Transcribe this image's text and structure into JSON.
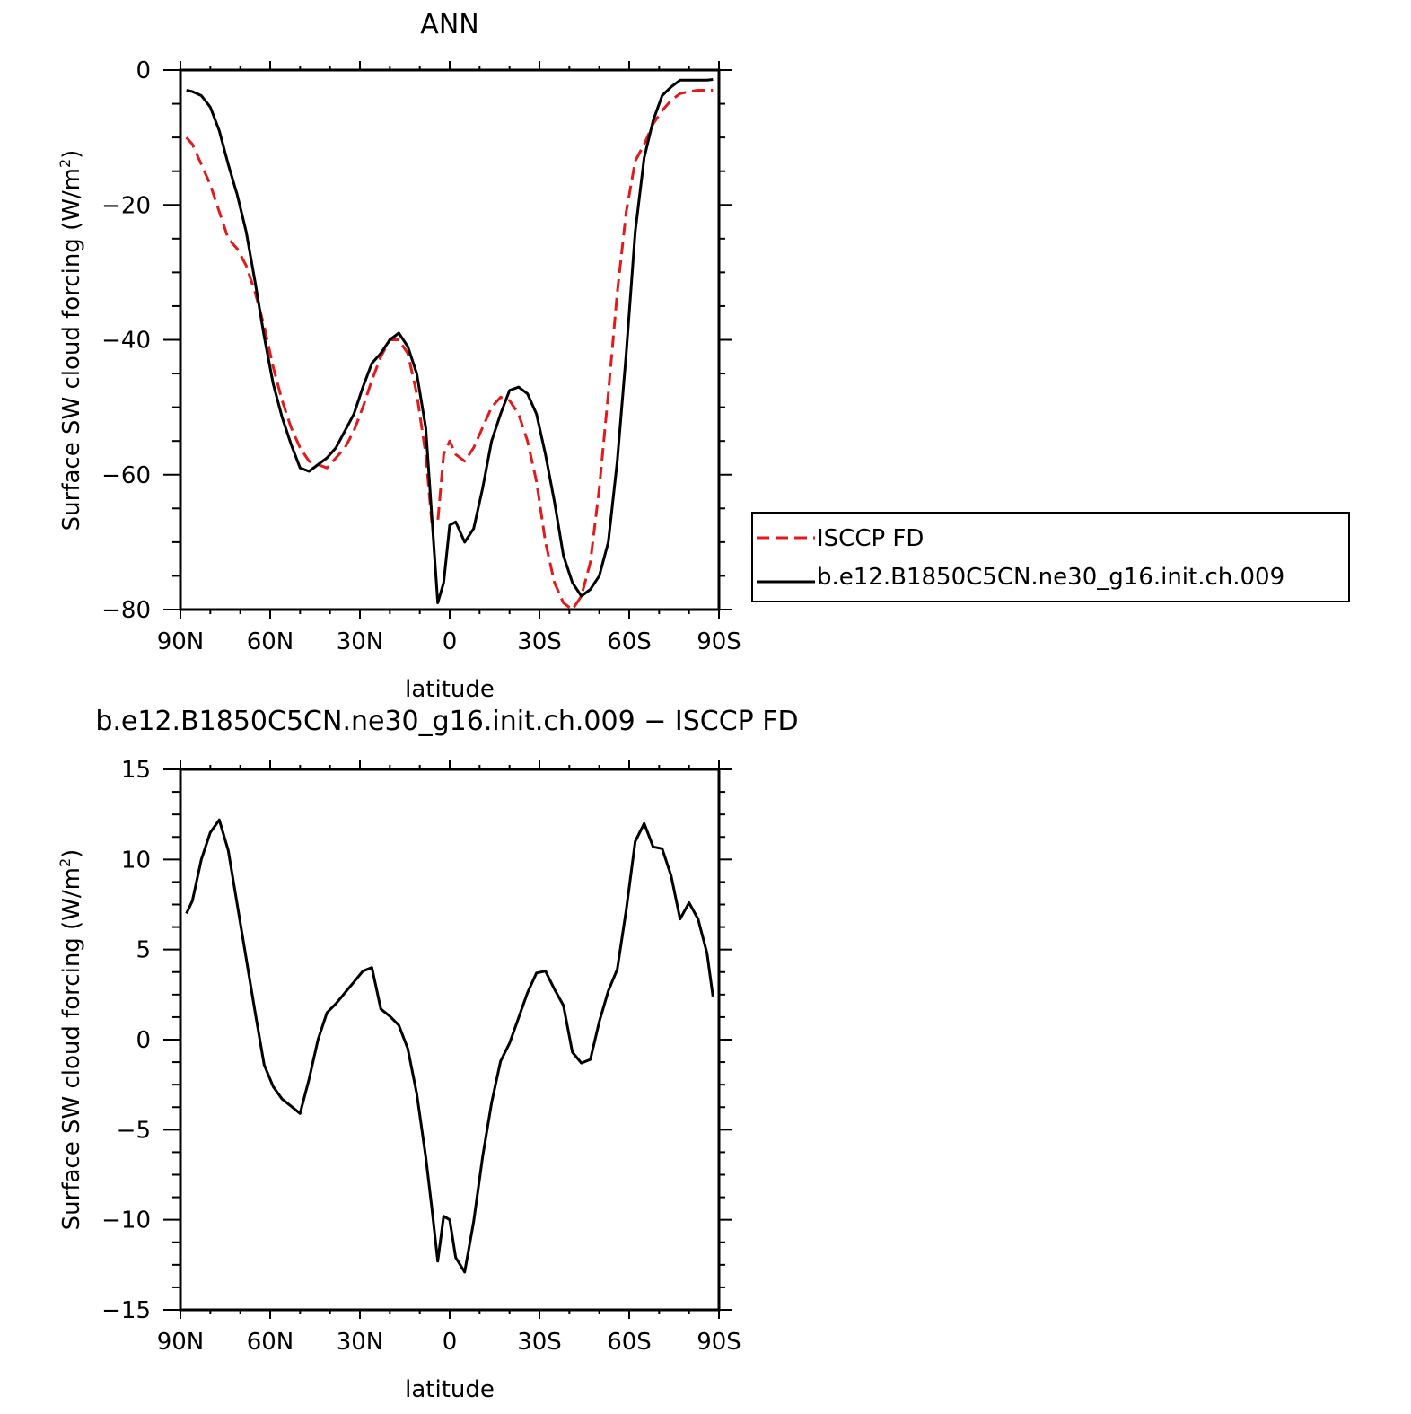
{
  "colors": {
    "obs": "#e31a1c",
    "model": "#000000",
    "axis": "#000000",
    "background": "#ffffff"
  },
  "chart_data": [
    {
      "type": "line",
      "title": "ANN",
      "xlabel": "latitude",
      "ylabel": "Surface SW cloud forcing (W/m",
      "ylabel_sup": "2",
      "ylabel_close": ")",
      "xlim": [
        90,
        -90
      ],
      "ylim": [
        -80,
        0
      ],
      "xticks": [
        90,
        60,
        30,
        0,
        -30,
        -60,
        -90
      ],
      "xtick_labels": [
        "90N",
        "60N",
        "30N",
        "0",
        "30S",
        "60S",
        "90S"
      ],
      "yticks": [
        0,
        -20,
        -40,
        -60,
        -80
      ],
      "ytick_labels": [
        "0",
        "−20",
        "−40",
        "−60",
        "−80"
      ],
      "legend_position": "right",
      "grid": false,
      "series": [
        {
          "name": "ISCCP FD",
          "style": "dashed",
          "color": "#e31a1c",
          "x": [
            88,
            86,
            83,
            80,
            77,
            74,
            71,
            68,
            65,
            62,
            59,
            56,
            53,
            50,
            47,
            44,
            41,
            38,
            35,
            32,
            29,
            26,
            23,
            20,
            17,
            14,
            11,
            8,
            6,
            4,
            2,
            0,
            -2,
            -5,
            -8,
            -11,
            -14,
            -17,
            -20,
            -23,
            -26,
            -29,
            -32,
            -35,
            -38,
            -41,
            -44,
            -47,
            -50,
            -53,
            -56,
            -59,
            -62,
            -65,
            -68,
            -71,
            -74,
            -77,
            -80,
            -83,
            -86,
            -88
          ],
          "y": [
            -10,
            -11,
            -14,
            -17,
            -21,
            -25,
            -26.5,
            -29,
            -33,
            -38,
            -44,
            -49,
            -53,
            -56,
            -58,
            -58.5,
            -59,
            -57.5,
            -56,
            -53.5,
            -50,
            -46,
            -42.5,
            -40,
            -40,
            -42,
            -48,
            -57,
            -67,
            -67,
            -57,
            -55,
            -57,
            -58,
            -56,
            -53,
            -50,
            -48.5,
            -49,
            -51,
            -55,
            -61,
            -70,
            -76,
            -79,
            -80,
            -78,
            -73,
            -62,
            -48,
            -33,
            -21,
            -13.5,
            -11,
            -8,
            -6,
            -4.5,
            -3.5,
            -3.2,
            -3,
            -3,
            -3
          ]
        },
        {
          "name": "b.e12.B1850C5CN.ne30_g16.init.ch.009",
          "style": "solid",
          "color": "#000000",
          "x": [
            88,
            86,
            83,
            80,
            77,
            74,
            71,
            68,
            65,
            62,
            59,
            56,
            53,
            50,
            47,
            44,
            41,
            38,
            35,
            32,
            29,
            26,
            23,
            20,
            17,
            14,
            11,
            8,
            6,
            4,
            2,
            0,
            -2,
            -5,
            -8,
            -11,
            -14,
            -17,
            -20,
            -23,
            -26,
            -29,
            -32,
            -35,
            -38,
            -41,
            -44,
            -47,
            -50,
            -53,
            -56,
            -59,
            -62,
            -65,
            -68,
            -71,
            -74,
            -77,
            -80,
            -83,
            -86,
            -88
          ],
          "y": [
            -3,
            -3.2,
            -3.8,
            -5.5,
            -9,
            -14,
            -18.5,
            -24,
            -31.5,
            -39.5,
            -46.5,
            -51.5,
            -55.5,
            -59,
            -59.5,
            -58.5,
            -57.5,
            -56,
            -53.5,
            -51,
            -47,
            -43.5,
            -42,
            -40,
            -39,
            -41,
            -45,
            -53,
            -66,
            -79,
            -76,
            -67.5,
            -67,
            -70,
            -68,
            -62,
            -55,
            -51,
            -47.5,
            -47,
            -48,
            -51,
            -57,
            -64,
            -72,
            -76,
            -78,
            -77,
            -75,
            -70,
            -58,
            -42,
            -24,
            -13,
            -7.5,
            -3.8,
            -2.5,
            -1.5,
            -1.5,
            -1.5,
            -1.5,
            -1.4
          ]
        }
      ]
    },
    {
      "type": "line",
      "title": "b.e12.B1850C5CN.ne30_g16.init.ch.009 − ISCCP FD",
      "xlabel": "latitude",
      "ylabel": "Surface SW cloud forcing (W/m",
      "ylabel_sup": "2",
      "ylabel_close": ")",
      "xlim": [
        90,
        -90
      ],
      "ylim": [
        -15,
        15
      ],
      "xticks": [
        90,
        60,
        30,
        0,
        -30,
        -60,
        -90
      ],
      "xtick_labels": [
        "90N",
        "60N",
        "30N",
        "0",
        "30S",
        "60S",
        "90S"
      ],
      "yticks": [
        15,
        10,
        5,
        0,
        -5,
        -10,
        -15
      ],
      "ytick_labels": [
        "15",
        "10",
        "5",
        "0",
        "−5",
        "−10",
        "−15"
      ],
      "grid": false,
      "series": [
        {
          "style": "solid",
          "color": "#000000",
          "x": [
            88,
            86,
            83,
            80,
            77,
            74,
            71,
            68,
            65,
            62,
            59,
            56,
            53,
            50,
            47,
            44,
            41,
            38,
            35,
            32,
            29,
            26,
            23,
            20,
            17,
            14,
            11,
            8,
            6,
            4,
            2,
            0,
            -2,
            -5,
            -8,
            -11,
            -14,
            -17,
            -20,
            -23,
            -26,
            -29,
            -32,
            -35,
            -38,
            -41,
            -44,
            -47,
            -50,
            -53,
            -56,
            -59,
            -62,
            -65,
            -68,
            -71,
            -74,
            -77,
            -80,
            -83,
            -86,
            -88
          ],
          "y": [
            7,
            7.7,
            10,
            11.5,
            12.2,
            10.5,
            7.5,
            4.5,
            1.5,
            -1.4,
            -2.6,
            -3.3,
            -3.7,
            -4.1,
            -2.2,
            0,
            1.5,
            2,
            2.6,
            3.2,
            3.8,
            4,
            1.7,
            1.3,
            0.8,
            -0.5,
            -3,
            -6.5,
            -9.3,
            -12.3,
            -9.8,
            -10,
            -12.1,
            -12.9,
            -10.1,
            -6.5,
            -3.5,
            -1.2,
            -0.2,
            1.2,
            2.6,
            3.7,
            3.8,
            2.8,
            1.9,
            -0.7,
            -1.3,
            -1.1,
            1,
            2.7,
            3.9,
            7.2,
            11,
            12,
            10.7,
            10.6,
            9.1,
            6.7,
            7.6,
            6.7,
            4.8,
            2.4
          ]
        }
      ]
    }
  ]
}
